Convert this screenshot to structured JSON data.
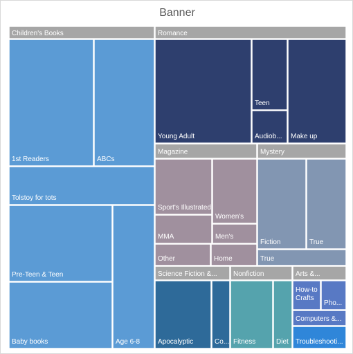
{
  "chart_data": {
    "type": "treemap",
    "title": "Banner",
    "colors": {
      "childrens": "#5b9bd5",
      "romance": "#2e3f6e",
      "magazine": "#a0909e",
      "mystery": "#8296b2",
      "scifi": "#2e6a99",
      "nonfiction": "#55a3ad",
      "arts": "#5879c4",
      "troubleshooting": "#2f86d9",
      "header": "#a6a6a6"
    },
    "groups": [
      {
        "name": "Children's Books",
        "labels": [
          "1st Readers",
          "ABCs",
          "Tolstoy for tots",
          "Pre-Teen & Teen",
          "Baby books",
          "Age 6-8"
        ]
      },
      {
        "name": "Romance",
        "labels": [
          "Young Adult",
          "Teen",
          "Audiob...",
          "Make up"
        ]
      },
      {
        "name": "Magazine",
        "labels": [
          "Sport's Illustrated",
          "Women's",
          "MMA",
          "Men's",
          "Other",
          "Home"
        ]
      },
      {
        "name": "Mystery",
        "labels": [
          "Fiction",
          "True",
          "True"
        ]
      },
      {
        "name": "Science Fiction &...",
        "labels": [
          "Apocalyptic",
          "Co..."
        ]
      },
      {
        "name": "Nonfiction",
        "labels": [
          "Fitness",
          "Diet"
        ]
      },
      {
        "name": "Arts &...",
        "labels": [
          "How-to Crafts",
          "Pho...",
          "Computers &...",
          "Troubleshooti..."
        ]
      }
    ]
  }
}
